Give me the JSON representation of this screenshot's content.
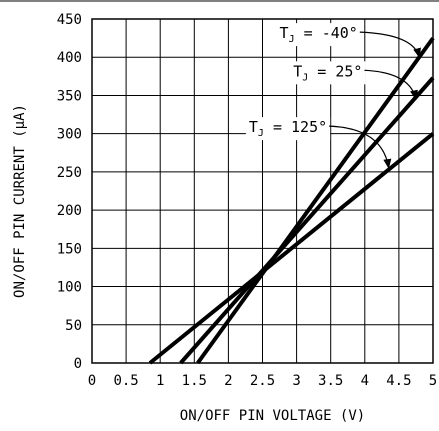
{
  "chart_data": {
    "type": "line",
    "xlabel": "ON/OFF PIN VOLTAGE (V)",
    "ylabel": "ON/OFF PIN CURRENT (μA)",
    "xlim": [
      0,
      5
    ],
    "ylim": [
      0,
      450
    ],
    "xticks": [
      "0",
      "0.5",
      "1",
      "1.5",
      "2",
      "2.5",
      "3",
      "3.5",
      "4",
      "4.5",
      "5"
    ],
    "yticks": [
      "0",
      "50",
      "100",
      "150",
      "200",
      "250",
      "300",
      "350",
      "400",
      "450"
    ],
    "grid": true,
    "series": [
      {
        "name": "T_J = -40°",
        "x": [
          1.55,
          5.0
        ],
        "y": [
          0,
          425
        ]
      },
      {
        "name": "T_J = 25°",
        "x": [
          1.3,
          5.0
        ],
        "y": [
          0,
          373
        ]
      },
      {
        "name": "T_J = 125°",
        "x": [
          0.85,
          5.0
        ],
        "y": [
          0,
          300
        ]
      }
    ],
    "annotations": [
      {
        "main": "T",
        "sub": "J",
        "rest": " = -40°",
        "series": 0,
        "text_x": 2.75,
        "text_y": 425,
        "arrow_to_x": 4.8,
        "arrow_to_y": 400
      },
      {
        "main": "T",
        "sub": "J",
        "rest": " = 25°",
        "series": 1,
        "text_x": 2.95,
        "text_y": 375,
        "arrow_to_x": 4.75,
        "arrow_to_y": 345
      },
      {
        "main": "T",
        "sub": "J",
        "rest": " = 125°",
        "series": 2,
        "text_x": 2.3,
        "text_y": 302,
        "arrow_to_x": 4.35,
        "arrow_to_y": 255
      }
    ]
  }
}
